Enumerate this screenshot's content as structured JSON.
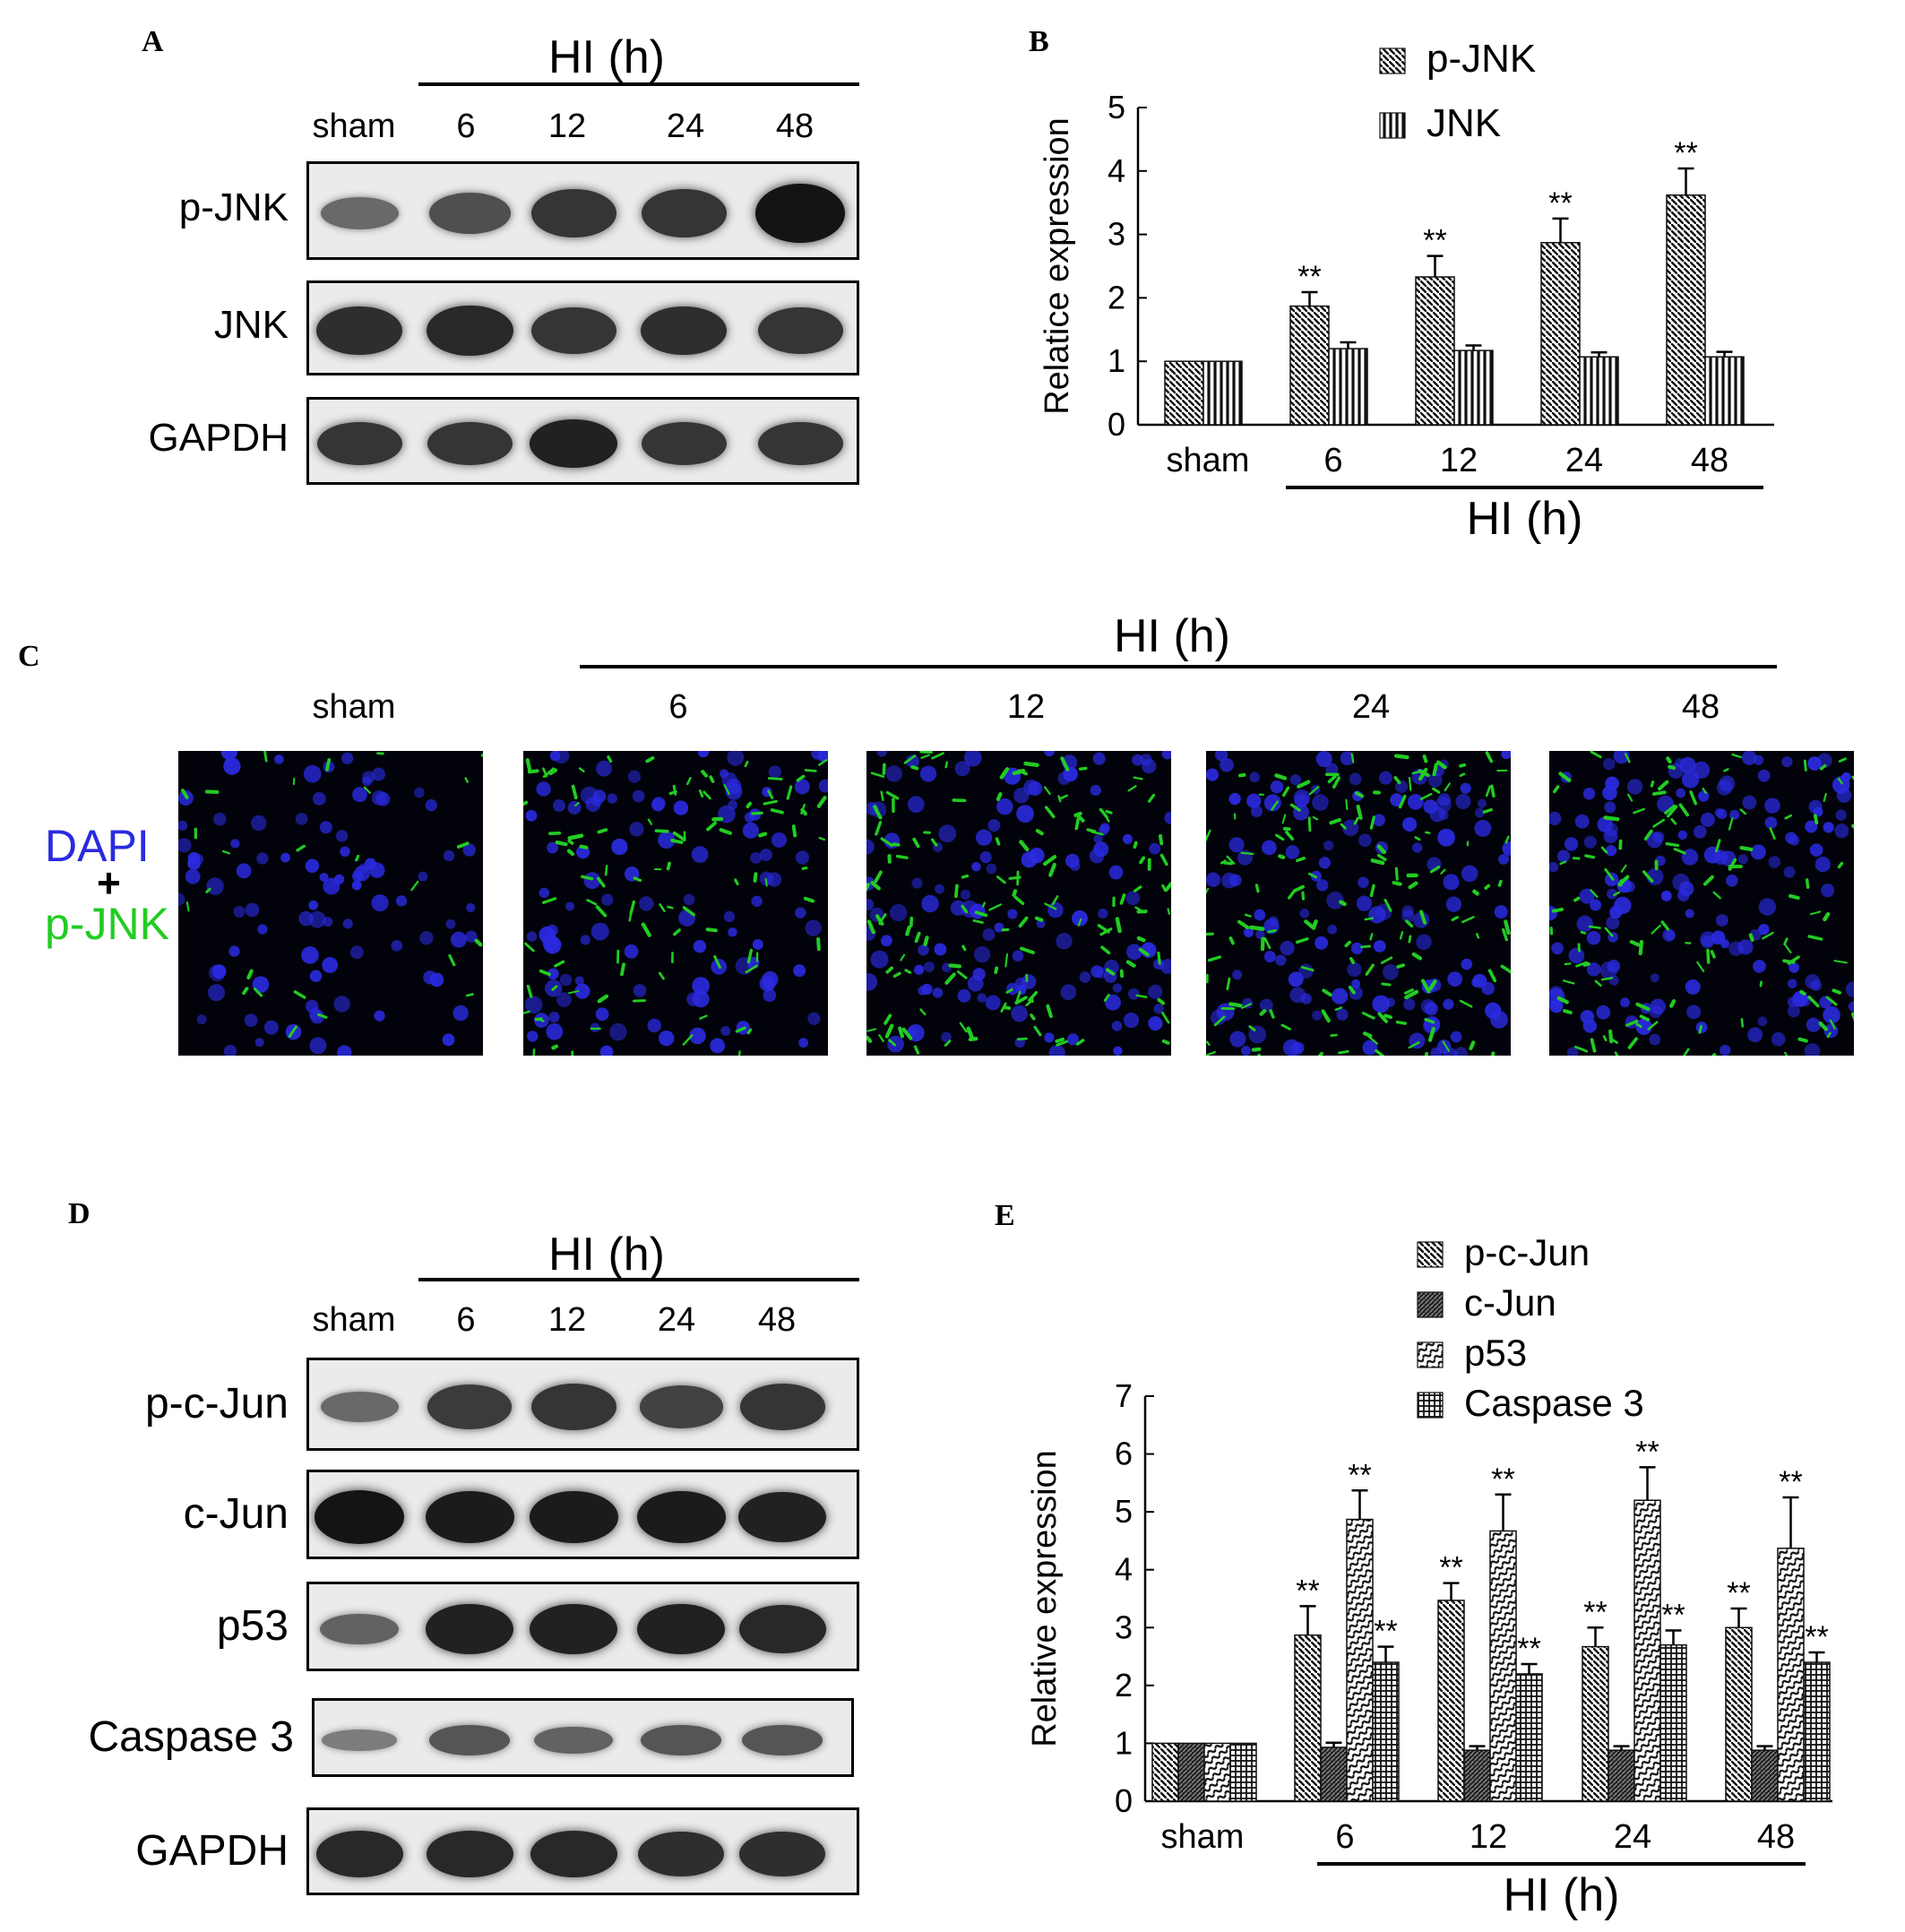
{
  "panels": {
    "a": "A",
    "b": "B",
    "c": "C",
    "d": "D",
    "e": "E"
  },
  "timepoints": [
    "sham",
    "6",
    "12",
    "24",
    "48"
  ],
  "hi_label": "HI (h)",
  "hi_label_c": "HI  (h)",
  "blot_a": {
    "rows": [
      {
        "label": "p-JNK",
        "intensity": [
          0.35,
          0.55,
          0.75,
          0.75,
          1.0
        ]
      },
      {
        "label": "JNK",
        "intensity": [
          0.8,
          0.85,
          0.75,
          0.8,
          0.75
        ]
      },
      {
        "label": "GAPDH",
        "intensity": [
          0.75,
          0.75,
          0.9,
          0.75,
          0.75
        ]
      }
    ]
  },
  "blot_d": {
    "rows": [
      {
        "label": "p-c-Jun",
        "intensity": [
          0.35,
          0.7,
          0.75,
          0.65,
          0.75
        ]
      },
      {
        "label": "c-Jun",
        "intensity": [
          1.0,
          0.95,
          0.95,
          0.95,
          0.9
        ]
      },
      {
        "label": "p53",
        "intensity": [
          0.4,
          0.9,
          0.9,
          0.9,
          0.85
        ]
      },
      {
        "label": "Caspase 3",
        "intensity": [
          0.2,
          0.5,
          0.4,
          0.5,
          0.5
        ]
      },
      {
        "label": "GAPDH",
        "intensity": [
          0.85,
          0.85,
          0.85,
          0.8,
          0.8
        ]
      }
    ]
  },
  "stain": {
    "dapi": "DAPI",
    "plus": "+",
    "pjnk": "p-JNK",
    "dapi_color": "#2a2ae0",
    "pjnk_color": "#22cc22",
    "green_density": [
      0.15,
      0.6,
      0.85,
      0.9,
      0.7
    ]
  },
  "chart_data": [
    {
      "type": "bar",
      "categories": [
        "sham",
        "6",
        "12",
        "24",
        "48"
      ],
      "series": [
        {
          "name": "p-JNK",
          "values": [
            1.0,
            1.87,
            2.33,
            2.87,
            3.62
          ],
          "errors": [
            0,
            0.22,
            0.33,
            0.38,
            0.42
          ],
          "sig": [
            "",
            "**",
            "**",
            "**",
            "**"
          ]
        },
        {
          "name": "JNK",
          "values": [
            1.0,
            1.2,
            1.17,
            1.07,
            1.07
          ],
          "errors": [
            0,
            0.1,
            0.08,
            0.07,
            0.08
          ],
          "sig": [
            "",
            "",
            "",
            "",
            ""
          ]
        }
      ],
      "ylabel": "Relatice expression",
      "xlabel": "HI (h)",
      "ylim": [
        0,
        5
      ],
      "yticks": [
        "0",
        "1",
        "2",
        "3",
        "4",
        "5"
      ],
      "legend": "top"
    },
    {
      "type": "bar",
      "categories": [
        "sham",
        "6",
        "12",
        "24",
        "48"
      ],
      "series": [
        {
          "name": "p-c-Jun",
          "values": [
            1.0,
            2.87,
            3.47,
            2.67,
            3.0
          ],
          "errors": [
            0,
            0.5,
            0.3,
            0.33,
            0.33
          ],
          "sig": [
            "",
            "**",
            "**",
            "**",
            "**"
          ]
        },
        {
          "name": "c-Jun",
          "values": [
            1.0,
            0.93,
            0.88,
            0.88,
            0.88
          ],
          "errors": [
            0,
            0.08,
            0.07,
            0.07,
            0.07
          ],
          "sig": [
            "",
            "",
            "",
            "",
            ""
          ]
        },
        {
          "name": "p53",
          "values": [
            1.0,
            4.87,
            4.67,
            5.2,
            4.37
          ],
          "errors": [
            0,
            0.5,
            0.63,
            0.57,
            0.88
          ],
          "sig": [
            "",
            "**",
            "**",
            "**",
            "**"
          ]
        },
        {
          "name": "Caspase 3",
          "values": [
            1.0,
            2.4,
            2.2,
            2.7,
            2.4
          ],
          "errors": [
            0,
            0.27,
            0.17,
            0.25,
            0.17
          ],
          "sig": [
            "",
            "**",
            "**",
            "**",
            "**"
          ]
        }
      ],
      "ylabel": "Relative expression",
      "xlabel": "HI (h)",
      "ylim": [
        0,
        7
      ],
      "yticks": [
        "0",
        "1",
        "2",
        "3",
        "4",
        "5",
        "6",
        "7"
      ],
      "legend": "top"
    }
  ]
}
